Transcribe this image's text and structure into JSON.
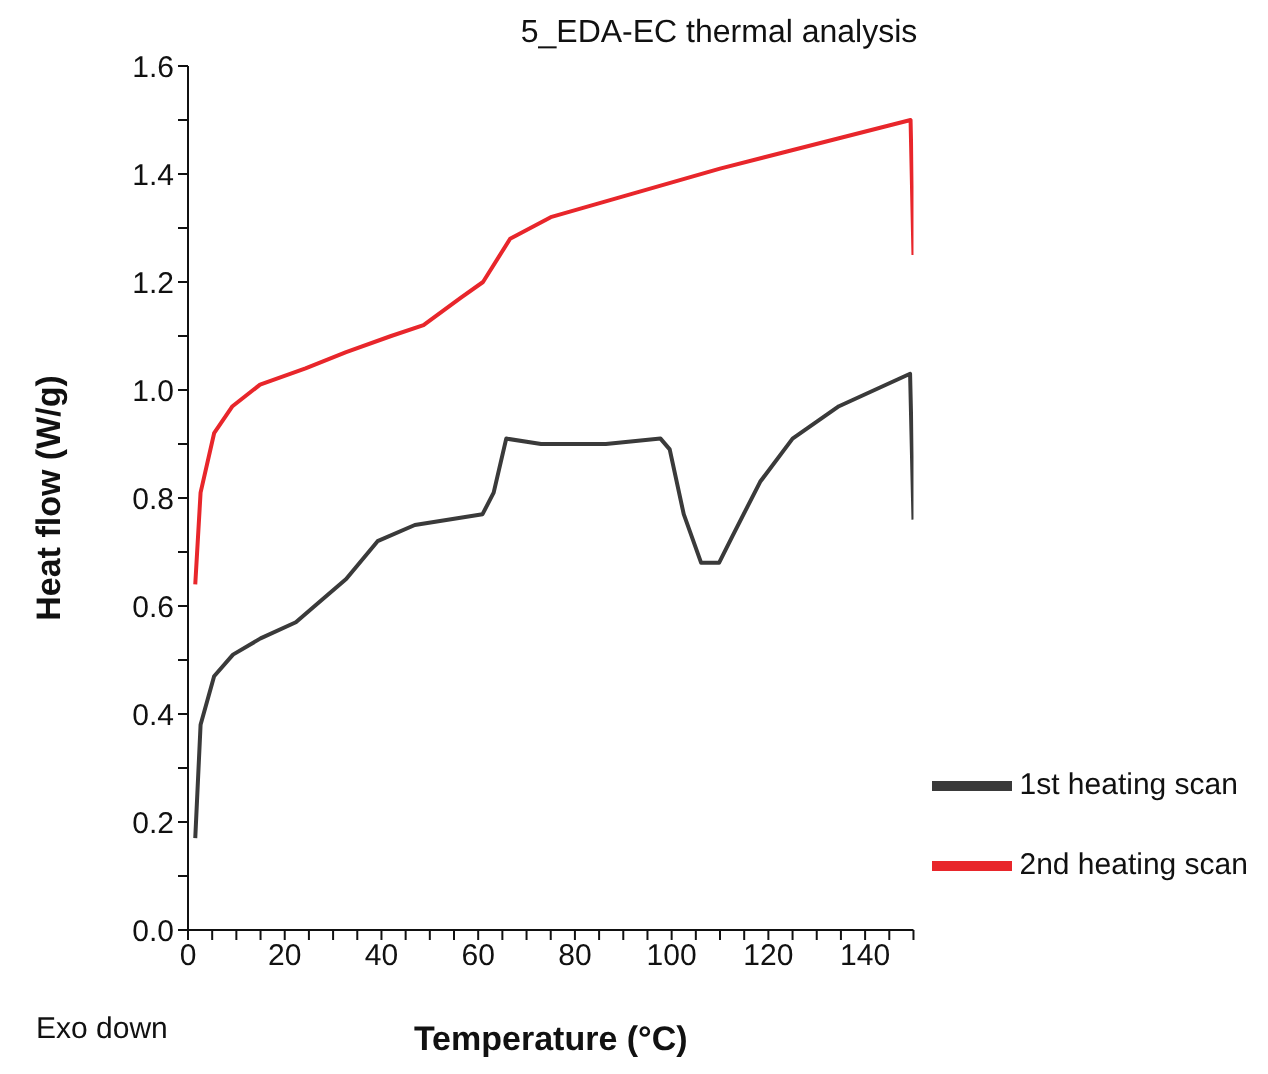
{
  "chart_data": {
    "type": "line",
    "title": "5_EDA-EC thermal analysis",
    "xlabel": "Temperature (°C)",
    "ylabel": "Heat flow (W/g)",
    "annotations": [
      "Exo down"
    ],
    "xlim": [
      0,
      150
    ],
    "xticks": [
      0,
      {
        "value": 5,
        "label": null
      },
      {
        "value": 10,
        "label": null
      },
      {
        "value": 15,
        "label": null
      },
      20,
      {
        "value": 25,
        "label": null
      },
      {
        "value": 30,
        "label": null
      },
      {
        "value": 35,
        "label": null
      },
      40,
      {
        "value": 45,
        "label": null
      },
      {
        "value": 50,
        "label": null
      },
      {
        "value": 55,
        "label": null
      },
      60,
      {
        "value": 65,
        "label": null
      },
      {
        "value": 70,
        "label": null
      },
      {
        "value": 75,
        "label": null
      },
      80,
      {
        "value": 85,
        "label": null
      },
      {
        "value": 90,
        "label": null
      },
      {
        "value": 95,
        "label": null
      },
      100,
      {
        "value": 105,
        "label": null
      },
      {
        "value": 110,
        "label": null
      },
      {
        "value": 115,
        "label": null
      },
      120,
      {
        "value": 125,
        "label": null
      },
      {
        "value": 130,
        "label": null
      },
      {
        "value": 135,
        "label": null
      },
      140,
      {
        "value": 145,
        "label": null
      },
      {
        "value": 150,
        "label": null
      }
    ],
    "ylim": [
      0,
      1.6
    ],
    "yticks": [
      {
        "value": 0,
        "label": "0.0"
      },
      {
        "value": 0.1,
        "label": null
      },
      {
        "value": 0.2,
        "label": "0.2"
      },
      {
        "value": 0.3,
        "label": null
      },
      {
        "value": 0.4,
        "label": "0.4"
      },
      {
        "value": 0.5,
        "label": null
      },
      {
        "value": 0.6,
        "label": "0.6"
      },
      {
        "value": 0.7,
        "label": null
      },
      {
        "value": 0.8,
        "label": "0.8"
      },
      {
        "value": 0.9,
        "label": null
      },
      {
        "value": 1.0,
        "label": "1.0"
      },
      {
        "value": 1.1,
        "label": null
      },
      {
        "value": 1.2,
        "label": "1.2"
      },
      {
        "value": 1.3,
        "label": null
      },
      {
        "value": 1.4,
        "label": "1.4"
      },
      {
        "value": 1.5,
        "label": null
      },
      {
        "value": 1.6,
        "label": "1.6"
      }
    ],
    "grid": false,
    "legend": "bottom right",
    "marker": "none",
    "line_style": "solid",
    "series": [
      {
        "name": "1st  heating scan",
        "color": "#3a3a3a",
        "x": [
          1.5,
          2.6,
          5.4,
          9.3,
          15,
          22.3,
          26.2,
          32.7,
          39.2,
          46.9,
          60.9,
          63.2,
          65.8,
          73,
          78.7,
          86.4,
          97.7,
          99.6,
          102.5,
          106.1,
          109.8,
          112.6,
          118.3,
          125,
          134.6,
          149.3,
          150
        ],
        "values": [
          0.17,
          0.38,
          0.47,
          0.51,
          0.54,
          0.57,
          0.6,
          0.65,
          0.72,
          0.75,
          0.77,
          0.81,
          0.91,
          0.9,
          0.9,
          0.9,
          0.91,
          0.89,
          0.77,
          0.68,
          0.68,
          0.73,
          0.83,
          0.91,
          0.97,
          1.03,
          0.76
        ]
      },
      {
        "name": "2nd heating scan",
        "color": "#e8262b",
        "x": [
          1.5,
          2.6,
          5.4,
          9.2,
          14.9,
          24.3,
          32.7,
          42,
          48.7,
          56.3,
          61,
          66.6,
          75,
          110,
          149.4,
          150
        ],
        "values": [
          0.64,
          0.81,
          0.92,
          0.97,
          1.01,
          1.04,
          1.07,
          1.1,
          1.12,
          1.17,
          1.2,
          1.28,
          1.32,
          1.41,
          1.5,
          1.25
        ]
      }
    ]
  }
}
